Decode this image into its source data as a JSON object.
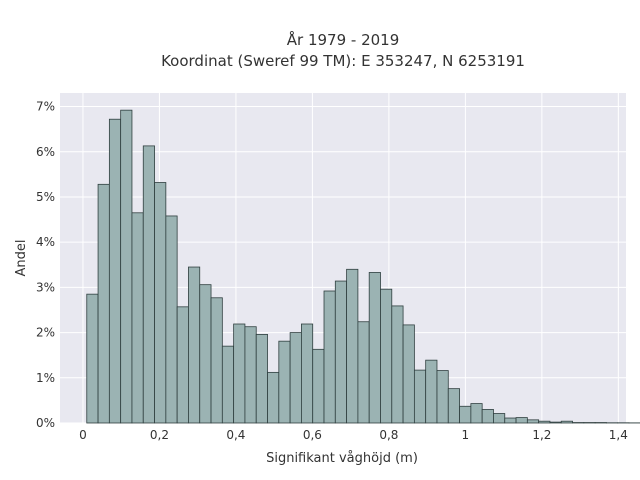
{
  "chart_data": {
    "type": "bar",
    "title": "År 1979 - 2019",
    "subtitle": "Koordinat (Sweref 99 TM): E 353247, N 6253191",
    "xlabel": "Signifikant våghöjd (m)",
    "ylabel": "Andel",
    "xlim": [
      -0.06,
      1.42
    ],
    "ylim": [
      0,
      7.3
    ],
    "x_ticks": [
      0,
      0.2,
      0.4,
      0.6,
      0.8,
      1,
      1.2,
      1.4
    ],
    "x_tick_labels": [
      "0",
      "0,2",
      "0,4",
      "0,6",
      "0,8",
      "1",
      "1,2",
      "1,4"
    ],
    "y_ticks": [
      0,
      1,
      2,
      3,
      4,
      5,
      6,
      7
    ],
    "y_tick_labels": [
      "0%",
      "1%",
      "2%",
      "3%",
      "4%",
      "5%",
      "6%",
      "7%"
    ],
    "bin_width": 0.02954,
    "bin_start": 0.01,
    "values": [
      2.85,
      5.28,
      6.72,
      6.92,
      4.65,
      6.13,
      5.32,
      4.58,
      2.57,
      3.45,
      3.06,
      2.77,
      1.7,
      2.19,
      2.13,
      1.96,
      1.12,
      1.81,
      2.0,
      2.19,
      1.63,
      2.92,
      3.14,
      3.4,
      2.24,
      3.33,
      2.96,
      2.59,
      2.17,
      1.17,
      1.39,
      1.16,
      0.76,
      0.37,
      0.43,
      0.3,
      0.21,
      0.11,
      0.12,
      0.07,
      0.04,
      0.02,
      0.04,
      0.01,
      0.01,
      0.01,
      0.005,
      0.005,
      0.003,
      0.002,
      0.0
    ],
    "grid": true,
    "colors": {
      "bar_fill": "#9bb3b3",
      "bar_stroke": "#2f3f3f",
      "plot_bg": "#e8e8f0",
      "grid": "#ffffff"
    }
  }
}
